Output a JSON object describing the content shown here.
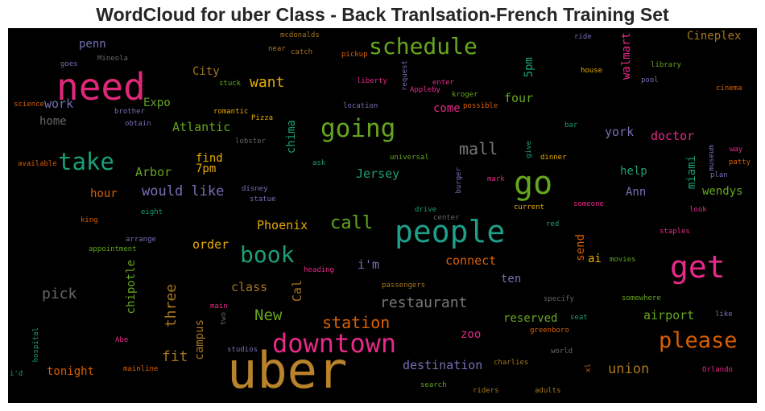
{
  "title": "WordCloud for uber Class - Back Tranlsation-French Training Set",
  "background_color": "#000000",
  "words": [
    {
      "text": "uber",
      "color": "#b8832a"
    },
    {
      "text": "need",
      "color": "#e0287a"
    },
    {
      "text": "people",
      "color": "#1f9e89"
    },
    {
      "text": "go",
      "color": "#66a61e"
    },
    {
      "text": "get",
      "color": "#e7298a"
    },
    {
      "text": "downtown",
      "color": "#e7298a"
    },
    {
      "text": "going",
      "color": "#66a61e"
    },
    {
      "text": "take",
      "color": "#1b9e77"
    },
    {
      "text": "schedule",
      "color": "#66a61e"
    },
    {
      "text": "book",
      "color": "#1b9e77"
    },
    {
      "text": "please",
      "color": "#d95f02"
    },
    {
      "text": "call",
      "color": "#66a61e"
    },
    {
      "text": "mall",
      "color": "#777777"
    },
    {
      "text": "restaurant",
      "color": "#777777"
    },
    {
      "text": "station",
      "color": "#d95f02"
    },
    {
      "text": "want",
      "color": "#e6ab02"
    },
    {
      "text": "would like",
      "color": "#7570b3"
    },
    {
      "text": "pick",
      "color": "#666666"
    },
    {
      "text": "work",
      "color": "#7570b3"
    },
    {
      "text": "union",
      "color": "#a6761d"
    },
    {
      "text": "Cineplex",
      "color": "#a6761d"
    },
    {
      "text": "New",
      "color": "#66a61e"
    },
    {
      "text": "airport",
      "color": "#66a61e"
    },
    {
      "text": "reserved",
      "color": "#66a61e"
    },
    {
      "text": "destination",
      "color": "#7570b3"
    },
    {
      "text": "fit",
      "color": "#a6761d"
    },
    {
      "text": "three",
      "color": "#a6761d"
    },
    {
      "text": "class",
      "color": "#a6761d"
    },
    {
      "text": "order",
      "color": "#e6ab02"
    },
    {
      "text": "Phoenix",
      "color": "#e6ab02"
    },
    {
      "text": "connect",
      "color": "#d95f02"
    },
    {
      "text": "i'm",
      "color": "#7570b3"
    },
    {
      "text": "Jersey",
      "color": "#1b9e77"
    },
    {
      "text": "Atlantic",
      "color": "#66a61e"
    },
    {
      "text": "Arbor",
      "color": "#66a61e"
    },
    {
      "text": "find",
      "color": "#e6ab02"
    },
    {
      "text": "7pm",
      "color": "#e6ab02"
    },
    {
      "text": "hour",
      "color": "#d95f02"
    },
    {
      "text": "home",
      "color": "#666666"
    },
    {
      "text": "Expo",
      "color": "#66a61e"
    },
    {
      "text": "City",
      "color": "#a6761d"
    },
    {
      "text": "penn",
      "color": "#7570b3"
    },
    {
      "text": "come",
      "color": "#e7298a"
    },
    {
      "text": "four",
      "color": "#66a61e"
    },
    {
      "text": "5pm",
      "color": "#1b9e77"
    },
    {
      "text": "walmart",
      "color": "#e7298a"
    },
    {
      "text": "york",
      "color": "#7570b3"
    },
    {
      "text": "doctor",
      "color": "#e7298a"
    },
    {
      "text": "help",
      "color": "#1b9e77"
    },
    {
      "text": "miami",
      "color": "#1b9e77"
    },
    {
      "text": "Ann",
      "color": "#7570b3"
    },
    {
      "text": "wendys",
      "color": "#66a61e"
    },
    {
      "text": "send",
      "color": "#d95f02"
    },
    {
      "text": "ai",
      "color": "#e6ab02"
    },
    {
      "text": "ten",
      "color": "#7570b3"
    },
    {
      "text": "zoo",
      "color": "#e7298a"
    },
    {
      "text": "tonight",
      "color": "#d95f02"
    },
    {
      "text": "chima",
      "color": "#1b9e77"
    },
    {
      "text": "chipotle",
      "color": "#66a61e"
    },
    {
      "text": "campus",
      "color": "#a6761d"
    },
    {
      "text": "Cal",
      "color": "#a6761d"
    },
    {
      "text": "mcdonalds",
      "color": "#a6761d"
    },
    {
      "text": "near",
      "color": "#a6761d"
    },
    {
      "text": "catch",
      "color": "#a6761d"
    },
    {
      "text": "pickup",
      "color": "#d95f02"
    },
    {
      "text": "ride",
      "color": "#7570b3"
    },
    {
      "text": "goes",
      "color": "#7570b3"
    },
    {
      "text": "Mineola",
      "color": "#666666"
    },
    {
      "text": "stuck",
      "color": "#66a61e"
    },
    {
      "text": "liberty",
      "color": "#e7298a"
    },
    {
      "text": "request",
      "color": "#7570b3"
    },
    {
      "text": "enter",
      "color": "#e7298a"
    },
    {
      "text": "Appleby",
      "color": "#e7298a"
    },
    {
      "text": "kroger",
      "color": "#66a61e"
    },
    {
      "text": "possible",
      "color": "#d95f02"
    },
    {
      "text": "house",
      "color": "#e6ab02"
    },
    {
      "text": "library",
      "color": "#66a61e"
    },
    {
      "text": "pool",
      "color": "#7570b3"
    },
    {
      "text": "cinema",
      "color": "#d95f02"
    },
    {
      "text": "science",
      "color": "#d95f02"
    },
    {
      "text": "brother",
      "color": "#7570b3"
    },
    {
      "text": "romantic",
      "color": "#e6ab02"
    },
    {
      "text": "location",
      "color": "#7570b3"
    },
    {
      "text": "obtain",
      "color": "#7570b3"
    },
    {
      "text": "Pizza",
      "color": "#e6ab02"
    },
    {
      "text": "bar",
      "color": "#1b9e77"
    },
    {
      "text": "lobster",
      "color": "#666666"
    },
    {
      "text": "give",
      "color": "#1b9e77"
    },
    {
      "text": "dinner",
      "color": "#e6ab02"
    },
    {
      "text": "way",
      "color": "#e7298a"
    },
    {
      "text": "patty",
      "color": "#d95f02"
    },
    {
      "text": "museum",
      "color": "#7570b3"
    },
    {
      "text": "plan",
      "color": "#7570b3"
    },
    {
      "text": "available",
      "color": "#d95f02"
    },
    {
      "text": "universal",
      "color": "#66a61e"
    },
    {
      "text": "ask",
      "color": "#1b9e77"
    },
    {
      "text": "burger",
      "color": "#7570b3"
    },
    {
      "text": "mark",
      "color": "#e7298a"
    },
    {
      "text": "disney",
      "color": "#7570b3"
    },
    {
      "text": "statue",
      "color": "#7570b3"
    },
    {
      "text": "eight",
      "color": "#1b9e77"
    },
    {
      "text": "drive",
      "color": "#1b9e77"
    },
    {
      "text": "current",
      "color": "#e6ab02"
    },
    {
      "text": "someone",
      "color": "#e7298a"
    },
    {
      "text": "look",
      "color": "#e7298a"
    },
    {
      "text": "king",
      "color": "#d95f02"
    },
    {
      "text": "center",
      "color": "#666666"
    },
    {
      "text": "red",
      "color": "#1b9e77"
    },
    {
      "text": "staples",
      "color": "#e7298a"
    },
    {
      "text": "arrange",
      "color": "#7570b3"
    },
    {
      "text": "appointment",
      "color": "#66a61e"
    },
    {
      "text": "heading",
      "color": "#e7298a"
    },
    {
      "text": "movies",
      "color": "#66a61e"
    },
    {
      "text": "passengers",
      "color": "#a6761d"
    },
    {
      "text": "specify",
      "color": "#666666"
    },
    {
      "text": "somewhere",
      "color": "#66a61e"
    },
    {
      "text": "main",
      "color": "#e7298a"
    },
    {
      "text": "two",
      "color": "#666666"
    },
    {
      "text": "like",
      "color": "#7570b3"
    },
    {
      "text": "seat",
      "color": "#1b9e77"
    },
    {
      "text": "greenboro",
      "color": "#d95f02"
    },
    {
      "text": "hospital",
      "color": "#1b9e77"
    },
    {
      "text": "Abe",
      "color": "#e7298a"
    },
    {
      "text": "studios",
      "color": "#7570b3"
    },
    {
      "text": "mainline",
      "color": "#d95f02"
    },
    {
      "text": "charlies",
      "color": "#a6761d"
    },
    {
      "text": "world",
      "color": "#666666"
    },
    {
      "text": "xl",
      "color": "#d95f02"
    },
    {
      "text": "Orlando",
      "color": "#e7298a"
    },
    {
      "text": "i'd",
      "color": "#1b9e77"
    },
    {
      "text": "search",
      "color": "#66a61e"
    },
    {
      "text": "riders",
      "color": "#a6761d"
    },
    {
      "text": "adults",
      "color": "#a6761d"
    }
  ]
}
